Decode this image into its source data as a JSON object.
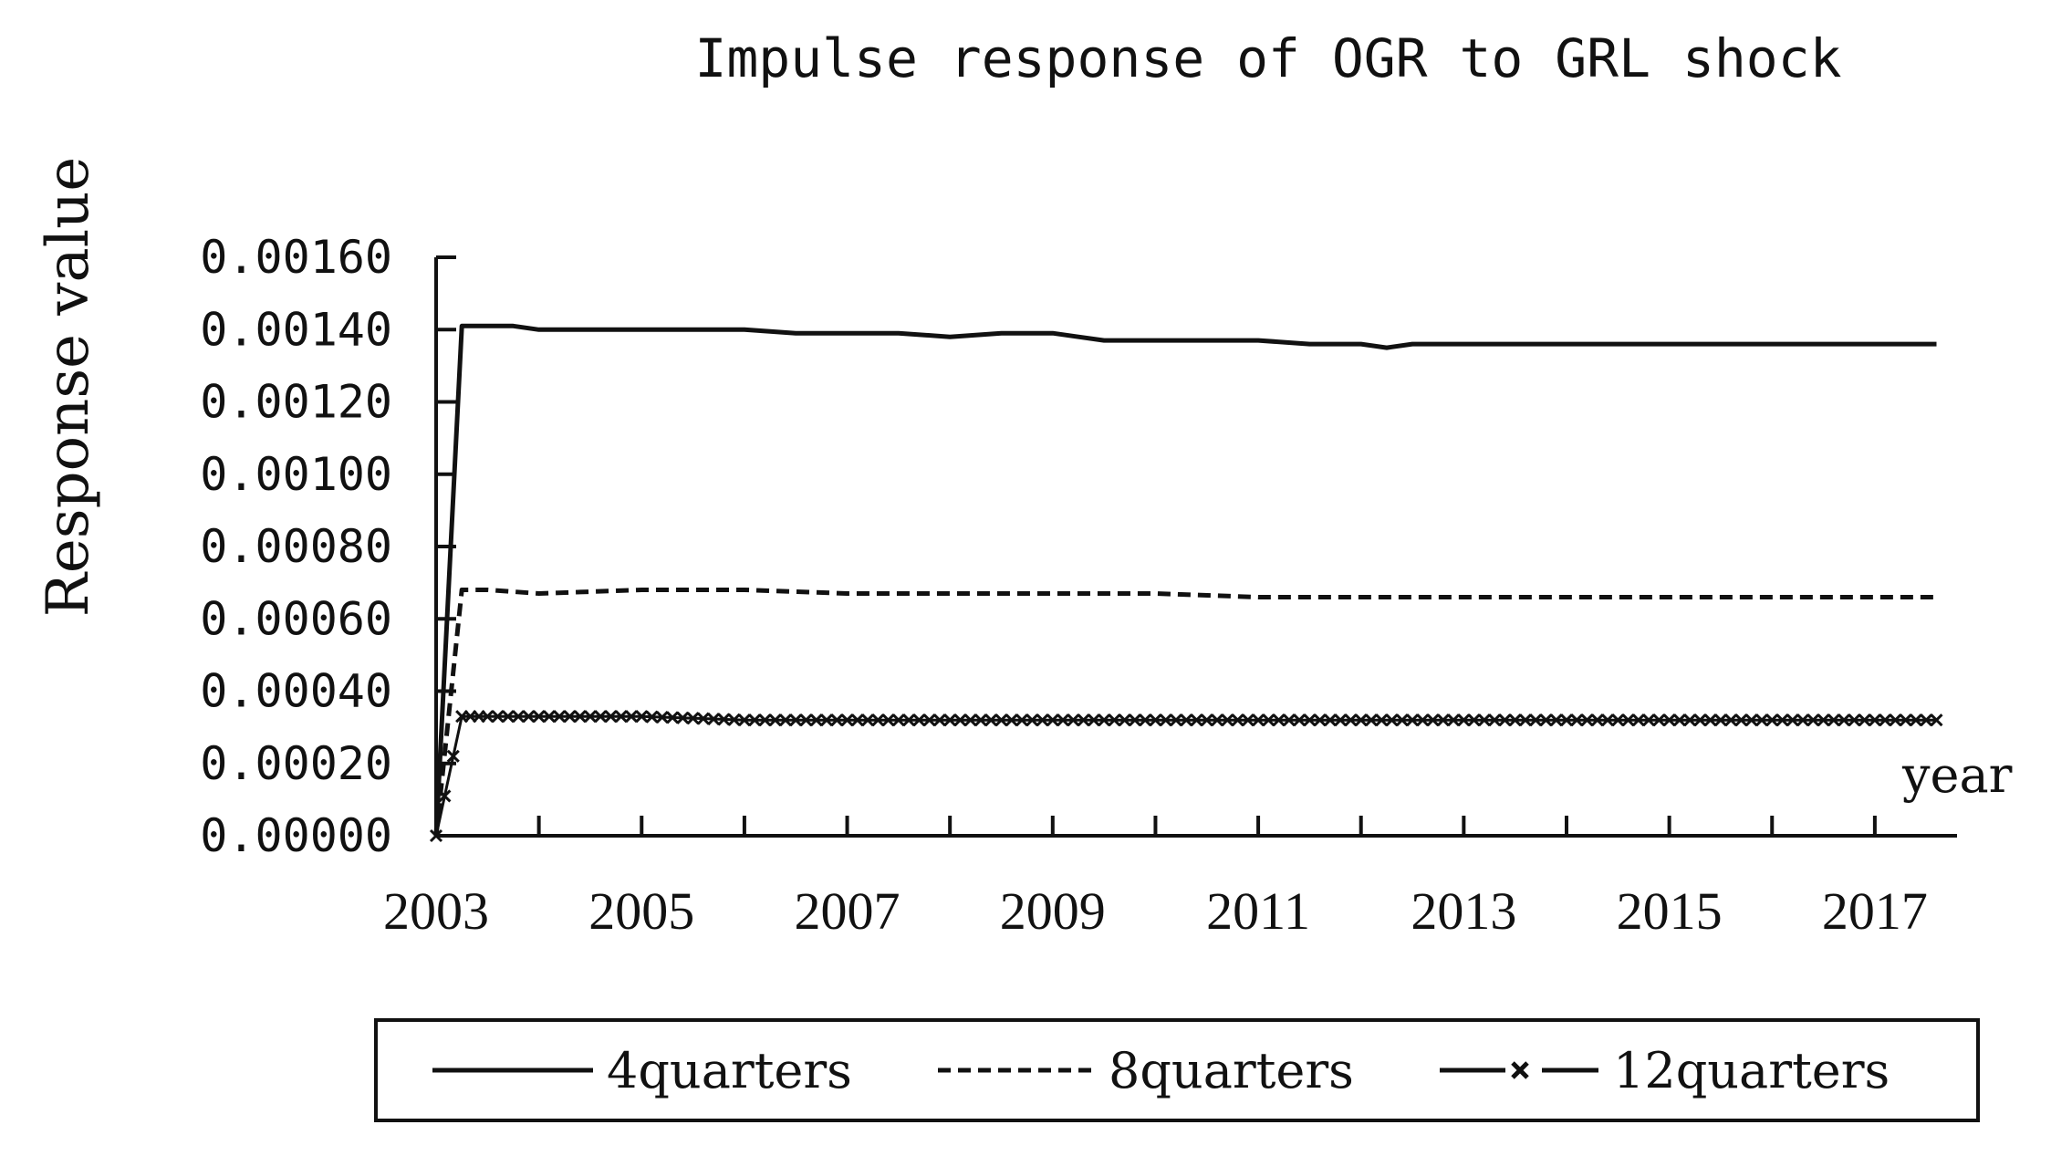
{
  "chart_data": {
    "type": "line",
    "title": "Impulse response of OGR to GRL shock",
    "ylabel": "Response value",
    "xlabel": "year",
    "ylim": [
      0,
      0.0016
    ],
    "xlim": [
      2003,
      2017.8
    ],
    "yticks": [
      "0.00000",
      "0.00020",
      "0.00040",
      "0.00060",
      "0.00080",
      "0.00100",
      "0.00120",
      "0.00140",
      "0.00160"
    ],
    "ytick_values": [
      0,
      0.0002,
      0.0004,
      0.0006,
      0.0008,
      0.001,
      0.0012,
      0.0014,
      0.0016
    ],
    "xticks": [
      "2003",
      "2005",
      "2007",
      "2009",
      "2011",
      "2013",
      "2015",
      "2017"
    ],
    "xtick_values": [
      2003,
      2005,
      2007,
      2009,
      2011,
      2013,
      2015,
      2017
    ],
    "legend_position": "bottom",
    "grid": false,
    "series": [
      {
        "name": "4quarters",
        "style": "solid",
        "color": "#111111",
        "x": [
          2003.0,
          2003.25,
          2003.5,
          2003.75,
          2004.0,
          2004.5,
          2005.0,
          2005.5,
          2006.0,
          2006.5,
          2007.0,
          2007.5,
          2008.0,
          2008.5,
          2009.0,
          2009.25,
          2009.5,
          2010.0,
          2010.5,
          2011.0,
          2011.5,
          2012.0,
          2012.25,
          2012.5,
          2013.0,
          2013.5,
          2014.0,
          2014.5,
          2015.0,
          2015.5,
          2016.0,
          2016.5,
          2017.0,
          2017.6
        ],
        "values": [
          0.0,
          0.00141,
          0.00141,
          0.00141,
          0.0014,
          0.0014,
          0.0014,
          0.0014,
          0.0014,
          0.00139,
          0.00139,
          0.00139,
          0.00138,
          0.00139,
          0.00139,
          0.00138,
          0.00137,
          0.00137,
          0.00137,
          0.00137,
          0.00136,
          0.00136,
          0.00135,
          0.00136,
          0.00136,
          0.00136,
          0.00136,
          0.00136,
          0.00136,
          0.00136,
          0.00136,
          0.00136,
          0.00136,
          0.00136
        ]
      },
      {
        "name": "8quarters",
        "style": "dashed",
        "color": "#111111",
        "x": [
          2003.0,
          2003.25,
          2003.5,
          2004.0,
          2005.0,
          2006.0,
          2007.0,
          2008.0,
          2009.0,
          2010.0,
          2011.0,
          2012.0,
          2013.0,
          2014.0,
          2015.0,
          2016.0,
          2017.0,
          2017.6
        ],
        "values": [
          0.0,
          0.00068,
          0.00068,
          0.00067,
          0.00068,
          0.00068,
          0.00067,
          0.00067,
          0.00067,
          0.00067,
          0.00066,
          0.00066,
          0.00066,
          0.00066,
          0.00066,
          0.00066,
          0.00066,
          0.00066
        ]
      },
      {
        "name": "12quarters",
        "style": "dash-cross",
        "color": "#111111",
        "x": [
          2003.0,
          2003.25,
          2003.5,
          2004.0,
          2005.0,
          2006.0,
          2007.0,
          2008.0,
          2009.0,
          2010.0,
          2011.0,
          2012.0,
          2013.0,
          2014.0,
          2015.0,
          2016.0,
          2017.0,
          2017.6
        ],
        "values": [
          0.0,
          0.00033,
          0.00033,
          0.00033,
          0.00033,
          0.00032,
          0.00032,
          0.00032,
          0.00032,
          0.00032,
          0.00032,
          0.00032,
          0.00032,
          0.00032,
          0.00032,
          0.00032,
          0.00032,
          0.00032
        ]
      }
    ]
  }
}
